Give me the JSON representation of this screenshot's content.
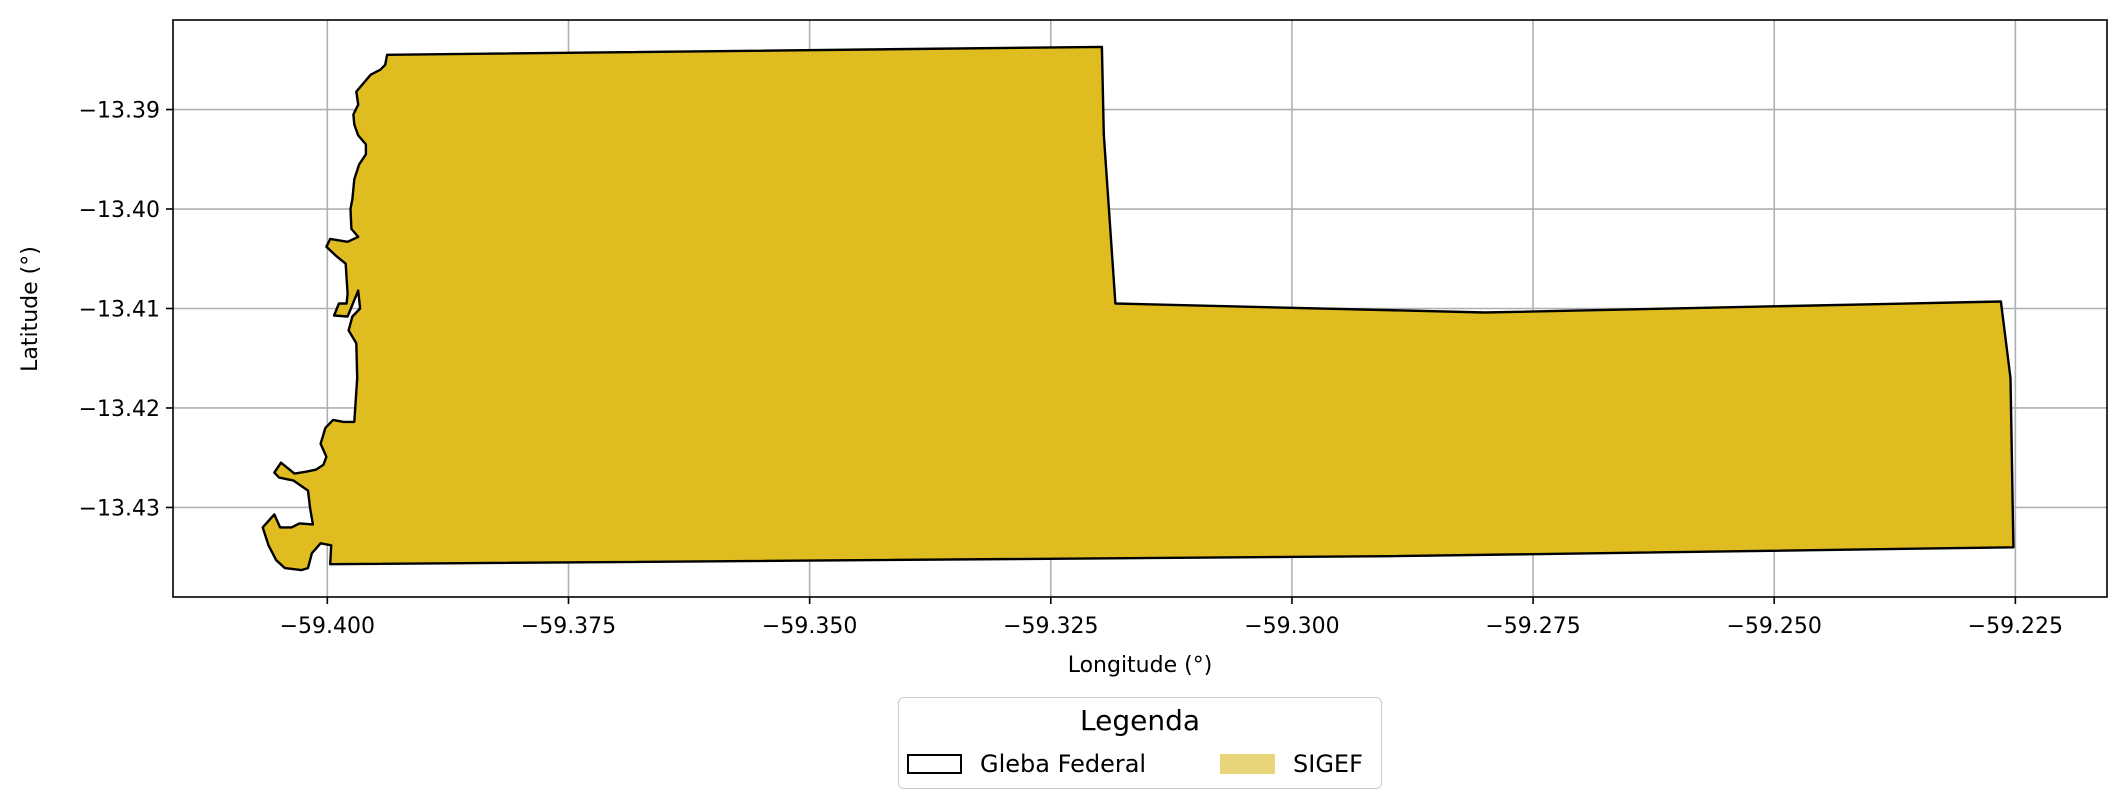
{
  "chart_data": {
    "type": "map",
    "xlabel": "Longitude (°)",
    "ylabel": "Latitude (°)",
    "xlim": [
      -59.416,
      -59.2155
    ],
    "ylim": [
      -13.439,
      -13.381
    ],
    "xticks": [
      -59.4,
      -59.375,
      -59.35,
      -59.325,
      -59.3,
      -59.275,
      -59.25,
      -59.225
    ],
    "xtick_labels": [
      "−59.400",
      "−59.375",
      "−59.350",
      "−59.325",
      "−59.300",
      "−59.275",
      "−59.250",
      "−59.225"
    ],
    "yticks": [
      -13.39,
      -13.4,
      -13.41,
      -13.42,
      -13.43
    ],
    "ytick_labels": [
      "−13.39",
      "−13.40",
      "−13.41",
      "−13.42",
      "−13.43"
    ],
    "grid": true,
    "legend": {
      "title": "Legenda",
      "placement": "below-center",
      "entries": [
        {
          "label": "Gleba Federal",
          "style": "outline",
          "color": "#000000"
        },
        {
          "label": "SIGEF",
          "style": "fill",
          "color": "#e8d57a"
        }
      ]
    },
    "colors": {
      "polygon_fill": "#dfbd20",
      "polygon_edge": "#000000",
      "grid": "#b0b0b0"
    },
    "polygon": [
      [
        -59.3938,
        -13.3845
      ],
      [
        -59.3197,
        -13.3837
      ],
      [
        -59.3195,
        -13.3925
      ],
      [
        -59.3183,
        -13.4095
      ],
      [
        -59.28,
        -13.4104
      ],
      [
        -59.2265,
        -13.4093
      ],
      [
        -59.2255,
        -13.417
      ],
      [
        -59.2252,
        -13.434
      ],
      [
        -59.29,
        -13.4349
      ],
      [
        -59.3997,
        -13.4357
      ],
      [
        -59.3996,
        -13.4338
      ],
      [
        -59.4007,
        -13.4336
      ],
      [
        -59.4016,
        -13.4346
      ],
      [
        -59.402,
        -13.4361
      ],
      [
        -59.4027,
        -13.4363
      ],
      [
        -59.4044,
        -13.4361
      ],
      [
        -59.4053,
        -13.4353
      ],
      [
        -59.4061,
        -13.4338
      ],
      [
        -59.4067,
        -13.432
      ],
      [
        -59.4055,
        -13.4307
      ],
      [
        -59.4049,
        -13.432
      ],
      [
        -59.4037,
        -13.432
      ],
      [
        -59.4029,
        -13.4316
      ],
      [
        -59.4015,
        -13.4317
      ],
      [
        -59.4018,
        -13.43
      ],
      [
        -59.402,
        -13.4283
      ],
      [
        -59.4035,
        -13.4273
      ],
      [
        -59.405,
        -13.427
      ],
      [
        -59.4055,
        -13.4265
      ],
      [
        -59.4048,
        -13.4255
      ],
      [
        -59.4034,
        -13.4266
      ],
      [
        -59.4022,
        -13.4264
      ],
      [
        -59.4012,
        -13.4262
      ],
      [
        -59.4004,
        -13.4257
      ],
      [
        -59.4001,
        -13.4249
      ],
      [
        -59.4007,
        -13.4236
      ],
      [
        -59.4002,
        -13.422
      ],
      [
        -59.3994,
        -13.4212
      ],
      [
        -59.3983,
        -13.4214
      ],
      [
        -59.3972,
        -13.4214
      ],
      [
        -59.3969,
        -13.417
      ],
      [
        -59.397,
        -13.4135
      ],
      [
        -59.3978,
        -13.4122
      ],
      [
        -59.3974,
        -13.4108
      ],
      [
        -59.3966,
        -13.41
      ],
      [
        -59.3968,
        -13.4082
      ],
      [
        -59.3979,
        -13.4108
      ],
      [
        -59.3993,
        -13.4107
      ],
      [
        -59.3988,
        -13.4095
      ],
      [
        -59.398,
        -13.4095
      ],
      [
        -59.3979,
        -13.4085
      ],
      [
        -59.398,
        -13.407
      ],
      [
        -59.3981,
        -13.4055
      ],
      [
        -59.3991,
        -13.4047
      ],
      [
        -59.4001,
        -13.4038
      ],
      [
        -59.3997,
        -13.403
      ],
      [
        -59.3979,
        -13.4033
      ],
      [
        -59.3968,
        -13.4028
      ],
      [
        -59.3975,
        -13.402
      ],
      [
        -59.3976,
        -13.4
      ],
      [
        -59.3974,
        -13.399
      ],
      [
        -59.3972,
        -13.397
      ],
      [
        -59.3967,
        -13.3955
      ],
      [
        -59.396,
        -13.3945
      ],
      [
        -59.396,
        -13.3935
      ],
      [
        -59.3968,
        -13.3926
      ],
      [
        -59.3972,
        -13.3915
      ],
      [
        -59.3973,
        -13.3905
      ],
      [
        -59.3968,
        -13.3895
      ],
      [
        -59.397,
        -13.3882
      ],
      [
        -59.3955,
        -13.3865
      ],
      [
        -59.3945,
        -13.386
      ],
      [
        -59.394,
        -13.3855
      ],
      [
        -59.3938,
        -13.3845
      ]
    ]
  }
}
